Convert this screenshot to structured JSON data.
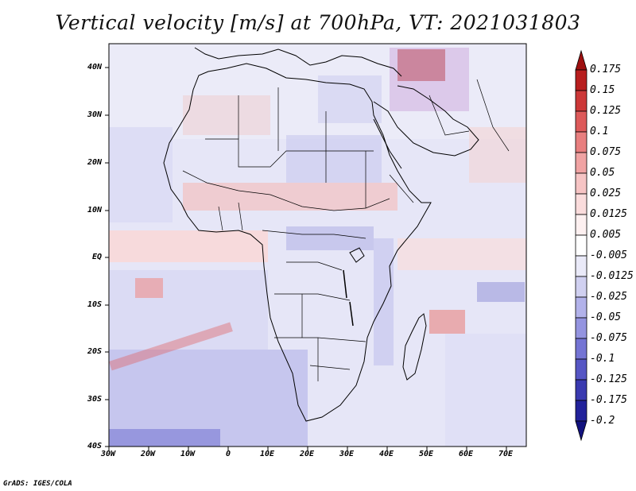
{
  "title": "Vertical velocity [m/s] at 700hPa, VT: 2021031803",
  "credit": "GrADS: IGES/COLA",
  "map": {
    "region": "Africa and surrounding oceans",
    "lon_range": [
      -30,
      75
    ],
    "lat_range": [
      -40,
      45
    ],
    "x_ticks": [
      "30W",
      "20W",
      "10W",
      "0",
      "10E",
      "20E",
      "30E",
      "40E",
      "50E",
      "60E",
      "70E"
    ],
    "y_ticks": [
      "40N",
      "30N",
      "20N",
      "10N",
      "EQ",
      "10S",
      "20S",
      "30S",
      "40S"
    ]
  },
  "colorbar": {
    "labels": [
      "0.175",
      "0.15",
      "0.125",
      "0.1",
      "0.075",
      "0.05",
      "0.025",
      "0.0125",
      "0.005",
      "-0.005",
      "-0.0125",
      "-0.025",
      "-0.05",
      "-0.075",
      "-0.1",
      "-0.125",
      "-0.175",
      "-0.2"
    ],
    "colors": [
      "#9e1010",
      "#b81e1e",
      "#cc3838",
      "#dd5a5a",
      "#e87f7f",
      "#f0a3a3",
      "#f6c4c4",
      "#fadcdc",
      "#fdf0f0",
      "#ffffff",
      "#eaeaf8",
      "#d0d0f0",
      "#b2b2ea",
      "#9494e0",
      "#7474d4",
      "#5656c4",
      "#3a3ab0",
      "#22229a",
      "#12127e"
    ]
  }
}
